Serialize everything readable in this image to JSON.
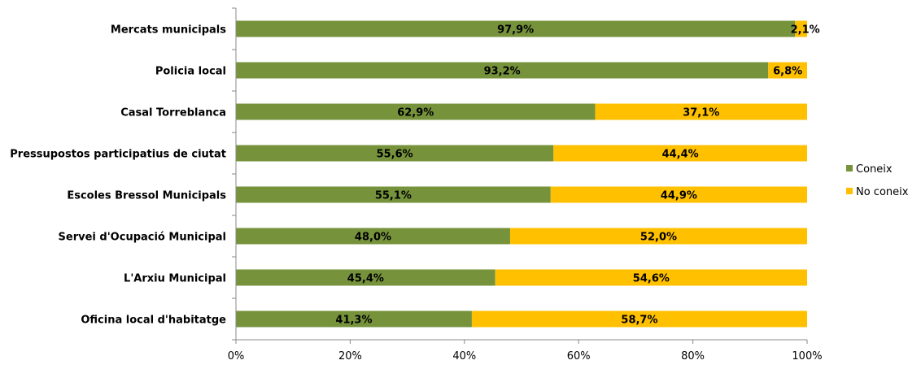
{
  "chart_data": {
    "type": "bar",
    "orientation": "horizontal",
    "stacked": "percent",
    "categories": [
      "Mercats municipals",
      "Policia local",
      "Casal Torreblanca",
      "Pressupostos participatius de ciutat",
      "Escoles Bressol Municipals",
      "Servei d'Ocupació Municipal",
      "L'Arxiu Municipal",
      "Oficina local d'habitatge"
    ],
    "series": [
      {
        "name": "Coneix",
        "color": "#76933c",
        "values": [
          97.9,
          93.2,
          62.9,
          55.6,
          55.1,
          48.0,
          45.4,
          41.3
        ],
        "labels": [
          "97,9%",
          "93,2%",
          "62,9%",
          "55,6%",
          "55,1%",
          "48,0%",
          "45,4%",
          "41,3%"
        ]
      },
      {
        "name": "No coneix",
        "color": "#ffc000",
        "values": [
          2.1,
          6.8,
          37.1,
          44.4,
          44.9,
          52.0,
          54.6,
          58.7
        ],
        "labels": [
          "2,1%",
          "6,8%",
          "37,1%",
          "44,4%",
          "44,9%",
          "52,0%",
          "54,6%",
          "58,7%"
        ]
      }
    ],
    "xlim": [
      0,
      100
    ],
    "x_ticks": [
      "0%",
      "20%",
      "40%",
      "60%",
      "80%",
      "100%"
    ],
    "grid": false,
    "legend_position": "right"
  }
}
